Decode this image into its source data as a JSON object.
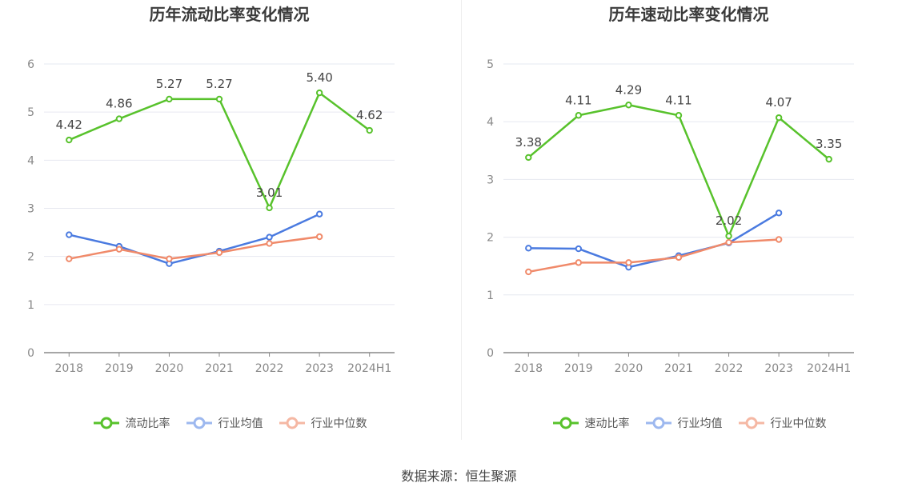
{
  "source_text": "数据来源：恒生聚源",
  "colors": {
    "ratio": "#58c22c",
    "avg": "#4b7be0",
    "median": "#f08a6a",
    "grid": "#e6e8f0",
    "axis": "#888888"
  },
  "chart_data": [
    {
      "type": "line",
      "title": "历年流动比率变化情况",
      "categories": [
        "2018",
        "2019",
        "2020",
        "2021",
        "2022",
        "2023",
        "2024H1"
      ],
      "ylim": [
        0,
        6
      ],
      "yticks": [
        0,
        1,
        2,
        3,
        4,
        5,
        6
      ],
      "grid": true,
      "legend_position": "bottom",
      "series": [
        {
          "name": "流动比率",
          "values": [
            4.42,
            4.86,
            5.27,
            5.27,
            3.01,
            5.4,
            4.62
          ],
          "labels": [
            "4.42",
            "4.86",
            "5.27",
            "5.27",
            "3.01",
            "5.40",
            "4.62"
          ]
        },
        {
          "name": "行业均值",
          "values": [
            2.45,
            2.21,
            1.85,
            2.11,
            2.4,
            2.88,
            null
          ]
        },
        {
          "name": "行业中位数",
          "values": [
            1.95,
            2.15,
            1.95,
            2.08,
            2.27,
            2.41,
            null
          ]
        }
      ]
    },
    {
      "type": "line",
      "title": "历年速动比率变化情况",
      "categories": [
        "2018",
        "2019",
        "2020",
        "2021",
        "2022",
        "2023",
        "2024H1"
      ],
      "ylim": [
        0,
        5
      ],
      "yticks": [
        0,
        1,
        2,
        3,
        4,
        5
      ],
      "grid": true,
      "legend_position": "bottom",
      "series": [
        {
          "name": "速动比率",
          "values": [
            3.38,
            4.11,
            4.29,
            4.11,
            2.02,
            4.07,
            3.35
          ],
          "labels": [
            "3.38",
            "4.11",
            "4.29",
            "4.11",
            "2.02",
            "4.07",
            "3.35"
          ]
        },
        {
          "name": "行业均值",
          "values": [
            1.81,
            1.8,
            1.48,
            1.68,
            1.9,
            2.42,
            null
          ]
        },
        {
          "name": "行业中位数",
          "values": [
            1.4,
            1.56,
            1.56,
            1.65,
            1.91,
            1.96,
            null
          ]
        }
      ]
    }
  ]
}
